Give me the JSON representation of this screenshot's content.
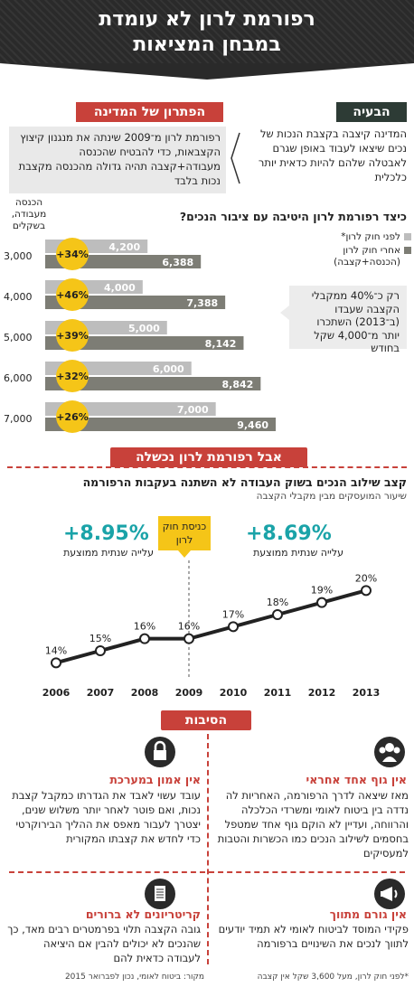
{
  "header": {
    "title_line1": "רפורמת לרון לא עומדת",
    "title_line2": "במבחן המציאות"
  },
  "problem": {
    "tab": "הבעיה",
    "text": "המדינה קיצבה בקצבת הנכות של נכים שיצאו לעבוד באופן שגרם לאבטלה שלהם להיות כדאית יותר כלכלית"
  },
  "solution": {
    "tab": "הפתרון של המדינה",
    "text": "רפורמת לרון מ־2009 שינתה את מנגנון קיצוץ הקצבאות, כדי להבטיח שהכנסה מעבודה+קצבה תהיה גדולה מהכנסה מקצבת נכות בלבד"
  },
  "chart1": {
    "question": "כיצד רפורמת לרון היטיבה עם ציבור הנכים?",
    "unit_label": "הכנסה מעבודה, בשקלים",
    "legend_before": "לפני חוק לרון*",
    "legend_after_line1": "אחרי חוק לרון",
    "legend_after_line2": "(הכנסה+קצבה)",
    "note": "רק כ־40% ממקבלי הקצבה שעבדו (ב־2013) השתכרו יותר מ־4,000 שקל בחודש",
    "colors": {
      "before": "#bdbdbd",
      "after": "#7d7d75",
      "badge": "#f5c518"
    },
    "rows": [
      {
        "income": "3,000",
        "before": 4200,
        "before_label": "4,200",
        "after": 6388,
        "after_label": "6,388",
        "pct": "+34%"
      },
      {
        "income": "4,000",
        "before": 4000,
        "before_label": "4,000",
        "after": 7388,
        "after_label": "7,388",
        "pct": "+46%"
      },
      {
        "income": "5,000",
        "before": 5000,
        "before_label": "5,000",
        "after": 8142,
        "after_label": "8,142",
        "pct": "+39%"
      },
      {
        "income": "6,000",
        "before": 6000,
        "before_label": "6,000",
        "after": 8842,
        "after_label": "8,842",
        "pct": "+32%"
      },
      {
        "income": "7,000",
        "before": 7000,
        "before_label": "7,000",
        "after": 9460,
        "after_label": "9,460",
        "pct": "+26%"
      }
    ]
  },
  "section2": {
    "tab": "אבל רפורמת לרון נכשלה",
    "subtitle": "קצב שילוב הנכים בשוק העבודה לא השתנה בעקבות הרפורמה",
    "subtitle2": "שיעור המועסקים מבין מקבלי הקצבה",
    "left_big": "+8.95%",
    "left_sub": "עלייה שנתית ממוצעת",
    "right_big": "+8.69%",
    "right_sub": "עלייה שנתית ממוצעת",
    "callout": "כניסת חוק לרון"
  },
  "chart_data": {
    "type": "line",
    "x": [
      "2006",
      "2007",
      "2008",
      "2009",
      "2010",
      "2011",
      "2012",
      "2013"
    ],
    "values": [
      14,
      15,
      16,
      16,
      17,
      18,
      19,
      20
    ],
    "labels": [
      "14%",
      "15%",
      "16%",
      "16%",
      "17%",
      "18%",
      "19%",
      "20%"
    ],
    "ylim": [
      12,
      21
    ]
  },
  "reasons": {
    "tab": "הסיבות",
    "items": [
      {
        "title": "אין גוף אחד אחראי",
        "text": "מאז שיצאה לדרך הרפורמה, האחריות לה נדדה בין ביטוח לאומי ומשרדי הכלכלה והרווחה, ועדיין לא הוקם גוף אחד שמטפל בחסמים לשילוב הנכים כמו הכשרות והטבות למעסיקים"
      },
      {
        "title": "אין אמון במערכת",
        "text": "עובד עשוי לאבד את הגדרתו כמקבל קצבת נכות, ואם פוטר לאחר יותר משלוש שנים, יצטרך לעבור מאפס את ההליך הבירוקרטי כדי לחדש את קצבתו המקורית"
      },
      {
        "title": "אין גורם מתווך",
        "text": "פקידי המוסד לביטוח לאומי לא תמיד יודעים לתווך לנכים את השינויים ברפורמה"
      },
      {
        "title": "קריטריונים לא ברורים",
        "text": "גובה הקצבה תלוי בפרמטרים רבים מאד, כך שהנכים לא יכולים להבין אם היציאה לעבודה כדאית להם"
      }
    ]
  },
  "footer": {
    "right": "*לפני חוק לרון, מעל 3,600 שקל אין קצבה",
    "left": "מקור: ביטוח לאומי, נכון לפברואר 2015"
  }
}
